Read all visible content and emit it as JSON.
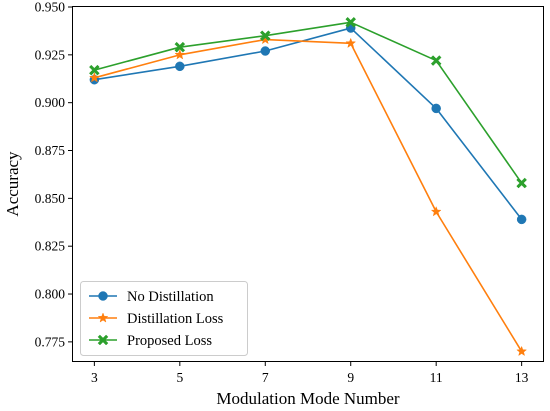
{
  "chart_data": {
    "type": "line",
    "xlabel": "Modulation Mode Number",
    "ylabel": "Accuracy",
    "x": [
      3,
      5,
      7,
      9,
      11,
      13
    ],
    "xticks": [
      "3",
      "5",
      "7",
      "9",
      "11",
      "13"
    ],
    "xlim": [
      2.5,
      13.5
    ],
    "ylim": [
      0.765,
      0.95
    ],
    "yticks": [
      "0.775",
      "0.800",
      "0.825",
      "0.850",
      "0.875",
      "0.900",
      "0.925",
      "0.950"
    ],
    "grid": false,
    "legend_position": "lower-left",
    "series": [
      {
        "name": "No Distillation",
        "color": "#1f77b4",
        "marker": "circle",
        "values": [
          0.912,
          0.919,
          0.927,
          0.939,
          0.897,
          0.839
        ]
      },
      {
        "name": "Distillation Loss",
        "color": "#ff7f0e",
        "marker": "star",
        "values": [
          0.913,
          0.925,
          0.933,
          0.931,
          0.843,
          0.77
        ]
      },
      {
        "name": "Proposed Loss",
        "color": "#2ca02c",
        "marker": "x-filled",
        "values": [
          0.917,
          0.929,
          0.935,
          0.942,
          0.922,
          0.858
        ]
      }
    ]
  }
}
